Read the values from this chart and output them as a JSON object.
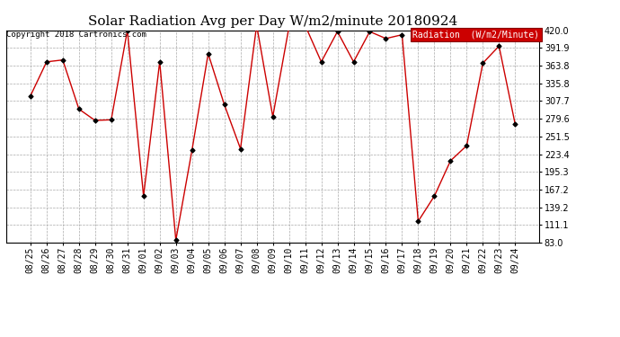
{
  "title": "Solar Radiation Avg per Day W/m2/minute 20180924",
  "copyright": "Copyright 2018 Cartronics.com",
  "legend_label": "Radiation  (W/m2/Minute)",
  "legend_bg": "#cc0000",
  "legend_text_color": "#ffffff",
  "dates": [
    "08/25",
    "08/26",
    "08/27",
    "08/28",
    "08/29",
    "08/30",
    "08/31",
    "09/01",
    "09/02",
    "09/03",
    "09/04",
    "09/05",
    "09/06",
    "09/07",
    "09/08",
    "09/09",
    "09/10",
    "09/11",
    "09/12",
    "09/13",
    "09/14",
    "09/15",
    "09/16",
    "09/17",
    "09/18",
    "09/19",
    "09/20",
    "09/21",
    "09/22",
    "09/23",
    "09/24"
  ],
  "values": [
    316,
    370,
    373,
    295,
    277,
    278,
    420,
    157,
    370,
    87,
    230,
    383,
    302,
    232,
    428,
    283,
    425,
    428,
    370,
    418,
    370,
    418,
    407,
    413,
    117,
    157,
    213,
    237,
    368,
    395,
    271
  ],
  "ylim": [
    83.0,
    420.0
  ],
  "yticks": [
    83.0,
    111.1,
    139.2,
    167.2,
    195.3,
    223.4,
    251.5,
    279.6,
    307.7,
    335.8,
    363.8,
    391.9,
    420.0
  ],
  "line_color": "#cc0000",
  "marker_color": "#000000",
  "bg_color": "#ffffff",
  "grid_color": "#aaaaaa",
  "title_fontsize": 11,
  "tick_fontsize": 7,
  "copyright_fontsize": 6.5
}
